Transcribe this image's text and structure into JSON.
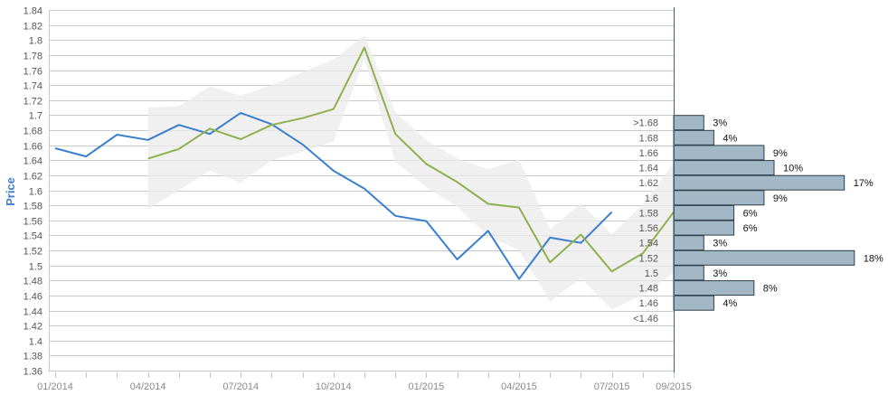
{
  "chart_data": {
    "type": "line",
    "ylabel": "Price",
    "ylim": [
      1.36,
      1.84
    ],
    "yticks": [
      1.36,
      1.38,
      1.4,
      1.42,
      1.44,
      1.46,
      1.48,
      1.5,
      1.52,
      1.54,
      1.56,
      1.58,
      1.6,
      1.62,
      1.64,
      1.66,
      1.68,
      1.7,
      1.72,
      1.74,
      1.76,
      1.78,
      1.8,
      1.82,
      1.84
    ],
    "ytick_labels": [
      "1.36",
      "1.38",
      "1.4",
      "1.42",
      "1.44",
      "1.46",
      "1.48",
      "1.5",
      "1.52",
      "1.54",
      "1.56",
      "1.58",
      "1.6",
      "1.62",
      "1.64",
      "1.66",
      "1.68",
      "1.7",
      "1.72",
      "1.74",
      "1.76",
      "1.78",
      "1.8",
      "1.82",
      "1.84"
    ],
    "xlim": [
      "2014-01",
      "2015-09"
    ],
    "xticks": [
      "2014-01",
      "2014-04",
      "2014-07",
      "2014-10",
      "2015-01",
      "2015-04",
      "2015-07",
      "2015-09"
    ],
    "xtick_labels": [
      "01/2014",
      "04/2014",
      "07/2014",
      "10/2014",
      "01/2015",
      "04/2015",
      "07/2015",
      "09/2015"
    ],
    "grid": true,
    "colors": {
      "actual": "#3a7fcf",
      "forecast": "#8fb04e",
      "band": "#ebebeb",
      "hist_fill": "#a3b8c6",
      "hist_stroke": "#2d3e4a",
      "axis": "#3e5f78"
    },
    "series": [
      {
        "role": "actual",
        "points": [
          [
            "2014-01",
            1.656
          ],
          [
            "2014-02",
            1.645
          ],
          [
            "2014-03",
            1.674
          ],
          [
            "2014-04",
            1.667
          ],
          [
            "2014-05",
            1.687
          ],
          [
            "2014-06",
            1.675
          ],
          [
            "2014-07",
            1.703
          ],
          [
            "2014-08",
            1.688
          ],
          [
            "2014-09",
            1.661
          ],
          [
            "2014-10",
            1.626
          ],
          [
            "2014-11",
            1.602
          ],
          [
            "2014-12",
            1.566
          ],
          [
            "2015-01",
            1.559
          ],
          [
            "2015-02",
            1.508
          ],
          [
            "2015-03",
            1.546
          ],
          [
            "2015-04",
            1.482
          ],
          [
            "2015-05",
            1.537
          ],
          [
            "2015-06",
            1.53
          ],
          [
            "2015-07",
            1.571
          ]
        ]
      },
      {
        "role": "forecast",
        "points": [
          [
            "2014-04",
            1.642
          ],
          [
            "2014-05",
            1.655
          ],
          [
            "2014-06",
            1.682
          ],
          [
            "2014-07",
            1.668
          ],
          [
            "2014-08",
            1.687
          ],
          [
            "2014-09",
            1.696
          ],
          [
            "2014-10",
            1.708
          ],
          [
            "2014-11",
            1.79
          ],
          [
            "2014-12",
            1.675
          ],
          [
            "2015-01",
            1.635
          ],
          [
            "2015-02",
            1.611
          ],
          [
            "2015-03",
            1.582
          ],
          [
            "2015-04",
            1.577
          ],
          [
            "2015-05",
            1.504
          ],
          [
            "2015-06",
            1.541
          ],
          [
            "2015-07",
            1.492
          ],
          [
            "2015-08",
            1.516
          ],
          [
            "2015-09",
            1.571
          ]
        ]
      }
    ],
    "band": {
      "upper": [
        [
          "2014-04",
          1.71
        ],
        [
          "2014-05",
          1.712
        ],
        [
          "2014-06",
          1.738
        ],
        [
          "2014-07",
          1.726
        ],
        [
          "2014-08",
          1.74
        ],
        [
          "2014-09",
          1.757
        ],
        [
          "2014-10",
          1.774
        ],
        [
          "2014-11",
          1.806
        ],
        [
          "2014-12",
          1.704
        ],
        [
          "2015-01",
          1.667
        ],
        [
          "2015-02",
          1.642
        ],
        [
          "2015-03",
          1.628
        ],
        [
          "2015-04",
          1.641
        ],
        [
          "2015-05",
          1.548
        ],
        [
          "2015-06",
          1.583
        ],
        [
          "2015-07",
          1.541
        ],
        [
          "2015-08",
          1.581
        ],
        [
          "2015-09",
          1.636
        ]
      ],
      "lower": [
        [
          "2014-04",
          1.575
        ],
        [
          "2014-05",
          1.6
        ],
        [
          "2014-06",
          1.626
        ],
        [
          "2014-07",
          1.61
        ],
        [
          "2014-08",
          1.64
        ],
        [
          "2014-09",
          1.651
        ],
        [
          "2014-10",
          1.665
        ],
        [
          "2014-11",
          1.775
        ],
        [
          "2014-12",
          1.638
        ],
        [
          "2015-01",
          1.604
        ],
        [
          "2015-02",
          1.578
        ],
        [
          "2015-03",
          1.539
        ],
        [
          "2015-04",
          1.52
        ],
        [
          "2015-05",
          1.452
        ],
        [
          "2015-06",
          1.483
        ],
        [
          "2015-07",
          1.441
        ],
        [
          "2015-08",
          1.461
        ],
        [
          "2015-09",
          1.49
        ]
      ]
    },
    "histogram": {
      "bins": [
        {
          "label": ">1.68",
          "center": 1.69,
          "percent": 3,
          "percent_label": "3%"
        },
        {
          "label": "1.68",
          "center": 1.67,
          "percent": 4,
          "percent_label": "4%"
        },
        {
          "label": "1.66",
          "center": 1.65,
          "percent": 9,
          "percent_label": "9%"
        },
        {
          "label": "1.64",
          "center": 1.63,
          "percent": 10,
          "percent_label": "10%"
        },
        {
          "label": "1.62",
          "center": 1.61,
          "percent": 17,
          "percent_label": "17%"
        },
        {
          "label": "1.6",
          "center": 1.59,
          "percent": 9,
          "percent_label": "9%"
        },
        {
          "label": "1.58",
          "center": 1.57,
          "percent": 6,
          "percent_label": "6%"
        },
        {
          "label": "1.56",
          "center": 1.55,
          "percent": 6,
          "percent_label": "6%"
        },
        {
          "label": "1.54",
          "center": 1.53,
          "percent": 3,
          "percent_label": "3%"
        },
        {
          "label": "1.52",
          "center": 1.51,
          "percent": 18,
          "percent_label": "18%"
        },
        {
          "label": "1.5",
          "center": 1.49,
          "percent": 3,
          "percent_label": "3%"
        },
        {
          "label": "1.48",
          "center": 1.47,
          "percent": 8,
          "percent_label": "8%"
        },
        {
          "label": "1.46",
          "center": 1.45,
          "percent": 4,
          "percent_label": "4%"
        },
        {
          "label": "<1.46",
          "center": 1.43,
          "percent": 0,
          "percent_label": ""
        }
      ]
    }
  }
}
